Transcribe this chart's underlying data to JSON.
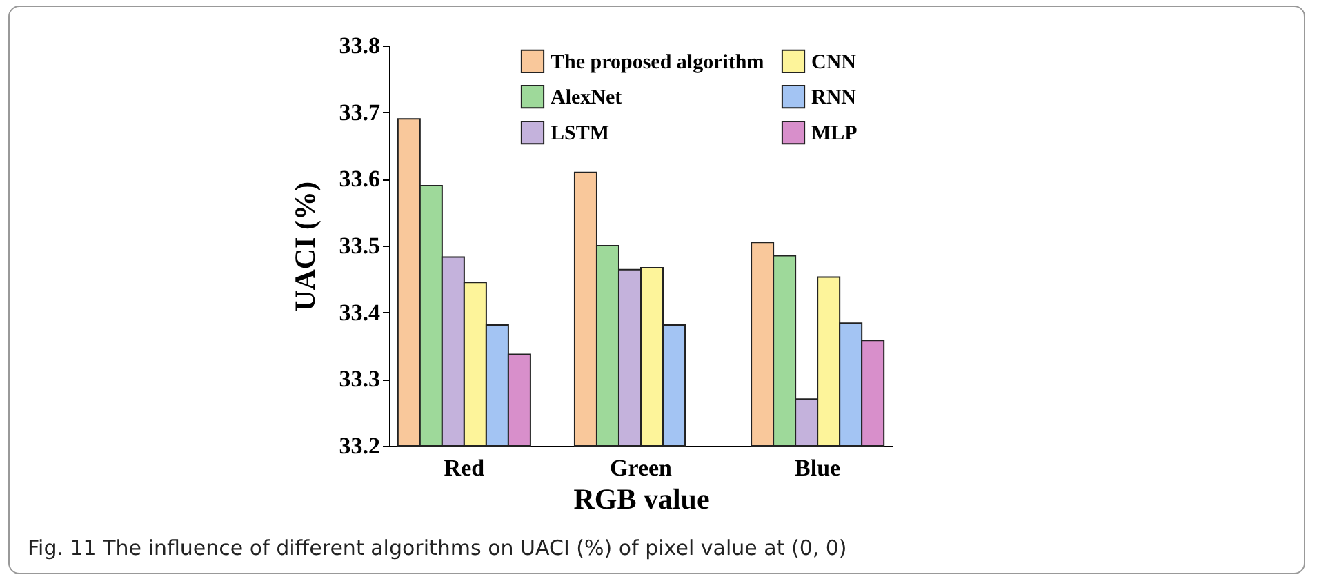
{
  "chart_data": {
    "type": "bar",
    "xlabel": "RGB value",
    "ylabel": "UACI (%)",
    "categories": [
      "Red",
      "Green",
      "Blue"
    ],
    "series": [
      {
        "name": "The proposed algorithm",
        "color": "#f9c89b",
        "values": [
          33.69,
          33.61,
          33.505
        ]
      },
      {
        "name": "AlexNet",
        "color": "#9ed99a",
        "values": [
          33.59,
          33.5,
          33.485
        ]
      },
      {
        "name": "LSTM",
        "color": "#c4b2dc",
        "values": [
          33.483,
          33.464,
          33.27
        ]
      },
      {
        "name": "CNN",
        "color": "#fdf49a",
        "values": [
          33.445,
          33.467,
          33.453
        ]
      },
      {
        "name": "RNN",
        "color": "#a3c4f3",
        "values": [
          33.381,
          33.381,
          33.384
        ]
      },
      {
        "name": "MLP",
        "color": "#d88fcb",
        "values": [
          33.337,
          null,
          33.358
        ]
      }
    ],
    "ylim": [
      33.2,
      33.8
    ],
    "yticks": [
      33.2,
      33.3,
      33.4,
      33.5,
      33.6,
      33.7,
      33.8
    ],
    "grid": false,
    "legend": "top right",
    "annotations": [
      "Fig. 11  The influence of different algorithms on UACI (%) of pixel value at (0, 0)"
    ]
  }
}
